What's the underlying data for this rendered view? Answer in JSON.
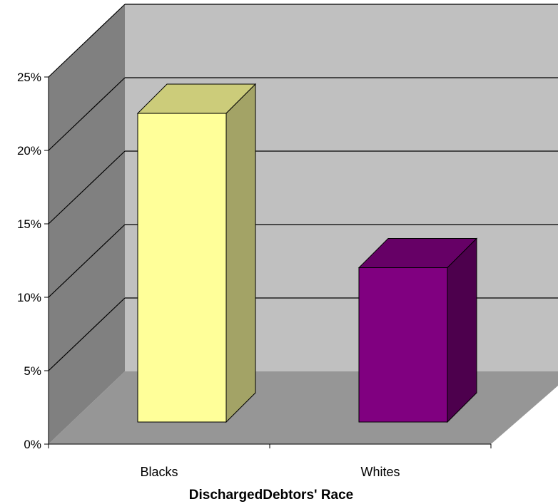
{
  "chart_data": {
    "type": "bar",
    "style": "3d-column",
    "categories": [
      "Blacks",
      "Whites"
    ],
    "values": [
      0.22,
      0.11
    ],
    "value_format": "percent",
    "title": "",
    "xlabel": "DischargedDebtors' Race",
    "ylabel": "",
    "ylim": [
      0,
      0.25
    ],
    "yticks": [
      "0%",
      "5%",
      "10%",
      "15%",
      "20%",
      "25%"
    ],
    "grid": true,
    "legend": "none",
    "colors": {
      "bars": [
        "#ffff99",
        "#800080"
      ],
      "bar_tops": [
        "#cccc7a",
        "#660066"
      ],
      "bar_sides": [
        "#a3a366",
        "#4d004d"
      ],
      "back_wall": "#c0c0c0",
      "side_wall": "#808080",
      "floor": "#969696",
      "gridline": "#000000"
    }
  }
}
